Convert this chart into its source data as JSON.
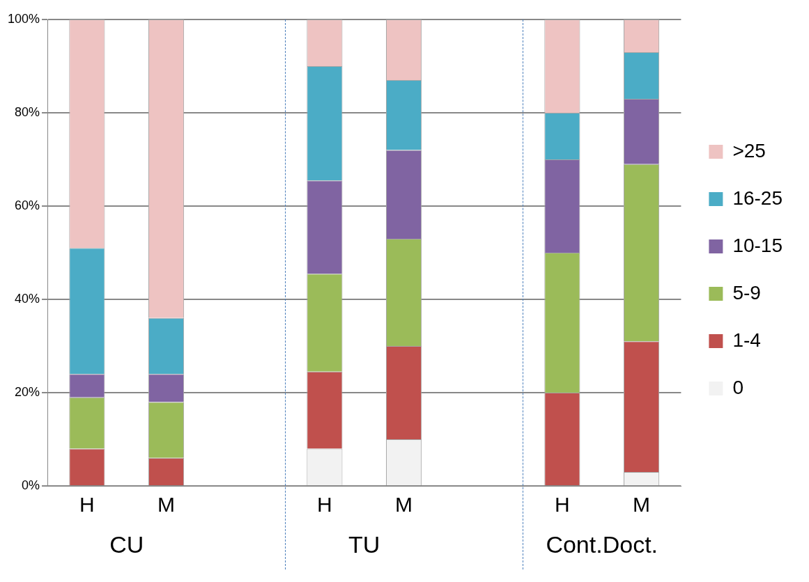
{
  "chart_data": {
    "type": "bar",
    "stacked": true,
    "categories": [
      "H",
      "M",
      null,
      "H",
      "M",
      null,
      "H",
      "M"
    ],
    "series": [
      {
        "name": "0",
        "color": "#f2f2f2",
        "values": [
          0,
          0,
          null,
          8,
          10,
          null,
          0,
          3
        ]
      },
      {
        "name": "1-4",
        "color": "#c0504d",
        "values": [
          8,
          6,
          null,
          16.5,
          20,
          null,
          20,
          28
        ]
      },
      {
        "name": "5-9",
        "color": "#9bbb59",
        "values": [
          11,
          12,
          null,
          21,
          23,
          null,
          30,
          38
        ]
      },
      {
        "name": "10-15",
        "color": "#8064a2",
        "values": [
          5,
          6,
          null,
          20,
          19,
          null,
          20,
          14
        ]
      },
      {
        "name": "16-25",
        "color": "#4bacc6",
        "values": [
          27,
          12,
          null,
          24.5,
          15,
          null,
          10,
          10
        ]
      },
      {
        "name": ">25",
        "color": "#eec3c2",
        "values": [
          49,
          64,
          null,
          10,
          13,
          null,
          20,
          7
        ]
      }
    ],
    "ylim": [
      0,
      100
    ],
    "yticks": [
      {
        "value": 0,
        "label": "0%"
      },
      {
        "value": 20,
        "label": "20%"
      },
      {
        "value": 40,
        "label": "40%"
      },
      {
        "value": 60,
        "label": "60%"
      },
      {
        "value": 80,
        "label": "80%"
      },
      {
        "value": 100,
        "label": "100%"
      }
    ],
    "grid": "y",
    "legend": "right",
    "annotations": [
      "CU",
      "TU",
      "Cont.Doct."
    ]
  }
}
